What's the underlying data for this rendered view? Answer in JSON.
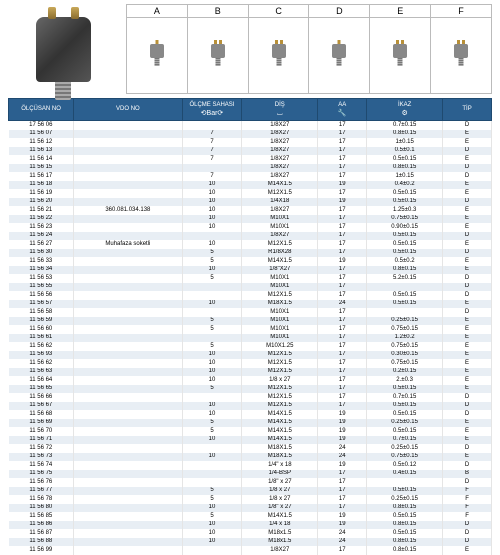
{
  "types": {
    "headers": [
      "A",
      "B",
      "C",
      "D",
      "E",
      "F"
    ],
    "labels": [
      "",
      "",
      "",
      "",
      "",
      ""
    ]
  },
  "columns": [
    {
      "label": "ÖLÇÜSAN NO",
      "icon": ""
    },
    {
      "label": "VDO NO",
      "icon": ""
    },
    {
      "label": "ÖLÇME SAHASI",
      "icon": "⟲Bar⟳"
    },
    {
      "label": "DİŞ",
      "icon": "⌴"
    },
    {
      "label": "AA",
      "icon": "🔧"
    },
    {
      "label": "İKAZ",
      "icon": "⚙"
    },
    {
      "label": "TİP",
      "icon": ""
    }
  ],
  "column_widths": [
    "12%",
    "20%",
    "11%",
    "14%",
    "9%",
    "14%",
    "9%"
  ],
  "header_bg": "#2b5f8f",
  "header_fg": "#ffffff",
  "row_even_bg": "#e8eef4",
  "row_odd_bg": "#ffffff",
  "rows": [
    [
      "17 56 06",
      "",
      "",
      "1/8X27",
      "17",
      "0.7±0.15",
      "D"
    ],
    [
      "11 56 07",
      "",
      "7",
      "1/8X27",
      "17",
      "0.8±0.15",
      "E"
    ],
    [
      "11 56 12",
      "",
      "7",
      "1/8X27",
      "17",
      "1±0.15",
      "E"
    ],
    [
      "11 56 13",
      "",
      "7",
      "1/8X27",
      "17",
      "0.5±0.1",
      "D"
    ],
    [
      "11 56 14",
      "",
      "7",
      "1/8X27",
      "17",
      "0.5±0.15",
      "E"
    ],
    [
      "11 56 15",
      "",
      "",
      "1/8X27",
      "17",
      "0.8±0.15",
      "D"
    ],
    [
      "11 56 17",
      "",
      "7",
      "1/8X27",
      "17",
      "1±0.15",
      "D"
    ],
    [
      "11 56 18",
      "",
      "10",
      "M14X1.5",
      "19",
      "0.4±0.2",
      "E"
    ],
    [
      "11 56 19",
      "",
      "10",
      "M12X1.5",
      "17",
      "0.5±0.15",
      "E"
    ],
    [
      "11 56 20",
      "",
      "10",
      "1/4X18",
      "19",
      "0.5±0.15",
      "D"
    ],
    [
      "11 56 21",
      "360.081.034.138",
      "10",
      "1/8X27",
      "17",
      "1.25±0.3",
      "E"
    ],
    [
      "11 56 22",
      "",
      "10",
      "M10X1",
      "17",
      "0.75±0.15",
      "E"
    ],
    [
      "11 56 23",
      "",
      "10",
      "M10X1",
      "17",
      "0.90±0.15",
      "E"
    ],
    [
      "11 56 24",
      "",
      "",
      "1/8X27",
      "17",
      "0.5±0.15",
      "D"
    ],
    [
      "11 56 27",
      "Muhafaza soketli",
      "10",
      "M12X1.5",
      "17",
      "0.5±0.15",
      "E"
    ],
    [
      "11 56 30",
      "",
      "5",
      "R1/8X28",
      "17",
      "0.5±0.15",
      "D"
    ],
    [
      "11 56 33",
      "",
      "5",
      "M14X1.5",
      "19",
      "0.5±0.2",
      "E"
    ],
    [
      "11 56 34",
      "",
      "10",
      "1/8\"X27",
      "17",
      "0.8±0.15",
      "E"
    ],
    [
      "11 56 53",
      "",
      "5",
      "M10X1",
      "17",
      "5.2±0.15",
      "D"
    ],
    [
      "11 56 55",
      "",
      "",
      "M10X1",
      "17",
      "",
      "D"
    ],
    [
      "11 56 56",
      "",
      "",
      "M12X1.5",
      "17",
      "0.5±0.15",
      "D"
    ],
    [
      "11 56 57",
      "",
      "10",
      "M18X1.5",
      "24",
      "0.5±0.15",
      "E"
    ],
    [
      "11 56 58",
      "",
      "",
      "M10X1",
      "17",
      "",
      "D"
    ],
    [
      "11 56 59",
      "",
      "5",
      "M10X1",
      "17",
      "0.25±0.15",
      "E"
    ],
    [
      "11 56 60",
      "",
      "5",
      "M10X1",
      "17",
      "0.75±0.15",
      "E"
    ],
    [
      "11 56 61",
      "",
      "",
      "M10X1",
      "17",
      "1.2±0.2",
      "E"
    ],
    [
      "11 56 62",
      "",
      "5",
      "M10X1.25",
      "17",
      "0.75±0.15",
      "E"
    ],
    [
      "11 56 93",
      "",
      "10",
      "M12X1.5",
      "17",
      "0.30±0.15",
      "E"
    ],
    [
      "11 56 62",
      "",
      "10",
      "M12X1.5",
      "17",
      "0.75±0.15",
      "E"
    ],
    [
      "11 56 63",
      "",
      "10",
      "M12X1.5",
      "17",
      "0.2±0.15",
      "E"
    ],
    [
      "11 56 64",
      "",
      "10",
      "1/8 x 27",
      "17",
      "2.±0.3",
      "E"
    ],
    [
      "11 56 65",
      "",
      "5",
      "M12X1.5",
      "17",
      "0.5±0.15",
      "E"
    ],
    [
      "11 56 66",
      "",
      "",
      "M12X1.5",
      "17",
      "0.7±0.15",
      "D"
    ],
    [
      "11 56 67",
      "",
      "10",
      "M12X1.5",
      "17",
      "0.5±0.15",
      "D"
    ],
    [
      "11 56 68",
      "",
      "10",
      "M14X1.5",
      "19",
      "0.5±0.15",
      "D"
    ],
    [
      "11 56 69",
      "",
      "5",
      "M14X1.5",
      "19",
      "0.25±0.15",
      "E"
    ],
    [
      "11 56 70",
      "",
      "5",
      "M14X1.5",
      "19",
      "0.5±0.15",
      "E"
    ],
    [
      "11 56 71",
      "",
      "10",
      "M14X1.5",
      "19",
      "0.7±0.15",
      "E"
    ],
    [
      "11 56 72",
      "",
      "",
      "M18X1.5",
      "24",
      "0.25±0.15",
      "D"
    ],
    [
      "11 56 73",
      "",
      "10",
      "M18X1.5",
      "24",
      "0.75±0.15",
      "E"
    ],
    [
      "11 56 74",
      "",
      "",
      "1/4\" x 18",
      "19",
      "0.5±0.12",
      "D"
    ],
    [
      "11 56 75",
      "",
      "",
      "1/4-BSP",
      "17",
      "0.4±0.15",
      "B"
    ],
    [
      "11 56 76",
      "",
      "",
      "1/8\" x 27",
      "17",
      "",
      "D"
    ],
    [
      "11 56 77",
      "",
      "5",
      "1/8 x 27",
      "17",
      "0.5±0.15",
      "F"
    ],
    [
      "11 56 78",
      "",
      "5",
      "1/8 x 27",
      "17",
      "0.25±0.15",
      "F"
    ],
    [
      "11 56 80",
      "",
      "10",
      "1/8\" x 27",
      "17",
      "0.8±0.15",
      "F"
    ],
    [
      "11 56 85",
      "",
      "5",
      "M14X1.5",
      "19",
      "0.5±0.15",
      "F"
    ],
    [
      "11 56 86",
      "",
      "10",
      "1/4 x 18",
      "19",
      "0.8±0.15",
      "D"
    ],
    [
      "11 56 87",
      "",
      "10",
      "M18x1.5",
      "24",
      "0.5±0.15",
      "D"
    ],
    [
      "11 56 88",
      "",
      "10",
      "M18x1.5",
      "24",
      "0.8±0.15",
      "D"
    ],
    [
      "11 56 99",
      "",
      "",
      "1/8X27",
      "17",
      "0.8±0.15",
      "E"
    ]
  ]
}
